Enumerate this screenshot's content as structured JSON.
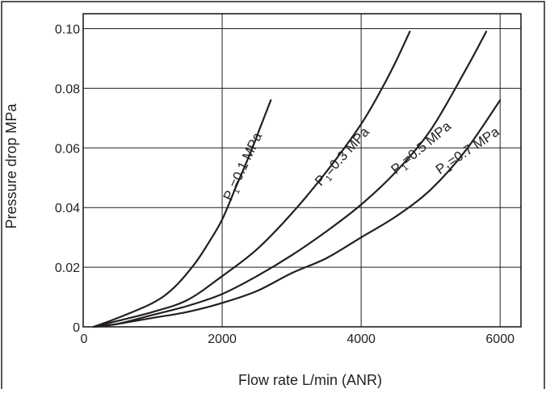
{
  "chart_data": {
    "type": "line",
    "title": "",
    "xlabel": "Flow rate L/min (ANR)",
    "ylabel": "Pressure drop MPa",
    "xlim": [
      0,
      6300
    ],
    "ylim": [
      0,
      0.105
    ],
    "x_ticks": [
      0,
      2000,
      4000,
      6000
    ],
    "x_tick_labels": [
      "0",
      "2000",
      "4000",
      "6000"
    ],
    "y_ticks": [
      0,
      0.02,
      0.04,
      0.06,
      0.08,
      0.1
    ],
    "y_tick_labels": [
      "0",
      "0.02",
      "0.04",
      "0.06",
      "0.08",
      "0.10"
    ],
    "grid": true,
    "series": [
      {
        "name": "P1=0.1 MPa",
        "label_prefix": "P",
        "label_sub": "1",
        "label_suffix": "=0.1 MPa",
        "x": [
          150,
          500,
          1000,
          1300,
          1600,
          1800,
          2000,
          2200,
          2400,
          2550,
          2700
        ],
        "y": [
          0,
          0.003,
          0.008,
          0.013,
          0.021,
          0.028,
          0.036,
          0.047,
          0.058,
          0.067,
          0.076
        ]
      },
      {
        "name": "P1=0.3 MPa",
        "label_prefix": "P",
        "label_sub": "1",
        "label_suffix": "=0.3 MPa",
        "x": [
          150,
          500,
          1000,
          1500,
          2000,
          2500,
          3000,
          3500,
          4000,
          4300,
          4500,
          4700
        ],
        "y": [
          0,
          0.002,
          0.005,
          0.009,
          0.017,
          0.026,
          0.038,
          0.052,
          0.068,
          0.08,
          0.089,
          0.099
        ]
      },
      {
        "name": "P1=0.5 MPa",
        "label_prefix": "P",
        "label_sub": "1",
        "label_suffix": "=0.5 MPa",
        "x": [
          150,
          500,
          1000,
          1500,
          2000,
          2500,
          3000,
          3500,
          4000,
          4500,
          5000,
          5500,
          5800
        ],
        "y": [
          0,
          0.001,
          0.004,
          0.007,
          0.011,
          0.017,
          0.024,
          0.032,
          0.041,
          0.052,
          0.066,
          0.086,
          0.099
        ]
      },
      {
        "name": "P1=0.7 MPa",
        "label_prefix": "P",
        "label_sub": "1",
        "label_suffix": "=0.7 MPa",
        "x": [
          150,
          500,
          1000,
          1500,
          2000,
          2500,
          3000,
          3500,
          4000,
          4500,
          5000,
          5500,
          6000
        ],
        "y": [
          0,
          0.001,
          0.003,
          0.005,
          0.008,
          0.012,
          0.018,
          0.023,
          0.03,
          0.037,
          0.046,
          0.059,
          0.076
        ]
      }
    ]
  }
}
